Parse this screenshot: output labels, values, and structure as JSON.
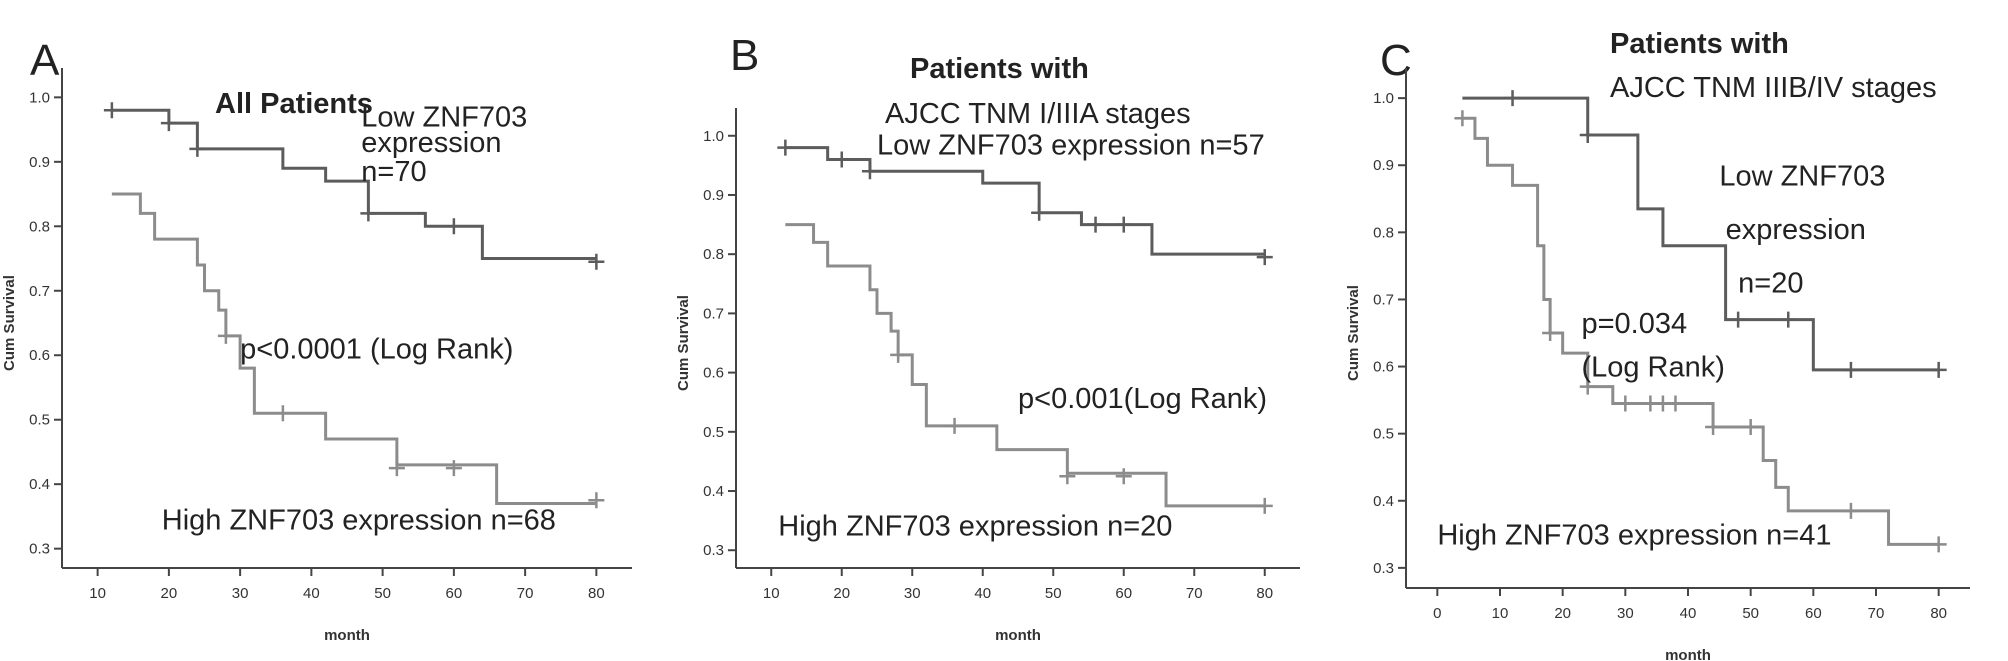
{
  "chart_data": [
    {
      "type": "line",
      "panel_label": "A",
      "title": "All Patients",
      "xlabel": "month",
      "ylabel": "Cum Survival",
      "xlim": [
        5,
        85
      ],
      "ylim": [
        0.27,
        1.03
      ],
      "xticks": [
        10,
        20,
        30,
        40,
        50,
        60,
        70,
        80
      ],
      "yticks": [
        0.3,
        0.4,
        0.5,
        0.6,
        0.7,
        0.8,
        0.9,
        1.0
      ],
      "grid": false,
      "annotations": [
        {
          "text": "Low ZNF703",
          "x": 47,
          "y": 0.955
        },
        {
          "text": "expression",
          "x": 47,
          "y": 0.915
        },
        {
          "text": "n=70",
          "x": 47,
          "y": 0.87
        },
        {
          "text": "p<0.0001 (Log Rank)",
          "x": 30,
          "y": 0.595
        },
        {
          "text": "High ZNF703 expression  n=68",
          "x": 19,
          "y": 0.33
        }
      ],
      "series": [
        {
          "color": "#5c5c5c",
          "steps": [
            [
              12,
              0.98
            ],
            [
              20,
              0.96
            ],
            [
              24,
              0.92
            ],
            [
              36,
              0.89
            ],
            [
              42,
              0.87
            ],
            [
              48,
              0.82
            ],
            [
              56,
              0.8
            ],
            [
              64,
              0.75
            ],
            [
              80,
              0.75
            ]
          ],
          "censors": [
            [
              12,
              0.98
            ],
            [
              20,
              0.96
            ],
            [
              24,
              0.92
            ],
            [
              48,
              0.82
            ],
            [
              60,
              0.8
            ],
            [
              80,
              0.745
            ]
          ]
        },
        {
          "color": "#8c8c8c",
          "steps": [
            [
              12,
              0.85
            ],
            [
              16,
              0.82
            ],
            [
              18,
              0.78
            ],
            [
              24,
              0.74
            ],
            [
              25,
              0.7
            ],
            [
              27,
              0.67
            ],
            [
              28,
              0.63
            ],
            [
              30,
              0.58
            ],
            [
              32,
              0.51
            ],
            [
              42,
              0.47
            ],
            [
              52,
              0.43
            ],
            [
              66,
              0.37
            ],
            [
              80,
              0.37
            ]
          ],
          "censors": [
            [
              28,
              0.63
            ],
            [
              36,
              0.51
            ],
            [
              52,
              0.425
            ],
            [
              60,
              0.425
            ],
            [
              80,
              0.375
            ]
          ]
        }
      ]
    },
    {
      "type": "line",
      "panel_label": "B",
      "title": "Patients with",
      "subtitle": "AJCC TNM I/IIIA stages",
      "xlabel": "month",
      "ylabel": "Cum Survival",
      "xlim": [
        5,
        85
      ],
      "ylim": [
        0.27,
        1.03
      ],
      "xticks": [
        10,
        20,
        30,
        40,
        50,
        60,
        70,
        80
      ],
      "yticks": [
        0.3,
        0.4,
        0.5,
        0.6,
        0.7,
        0.8,
        0.9,
        1.0
      ],
      "grid": false,
      "annotations": [
        {
          "text": "Low ZNF703 expression  n=57",
          "x": 25,
          "y": 0.968
        },
        {
          "text": "p<0.001(Log Rank)",
          "x": 45,
          "y": 0.54
        },
        {
          "text": "High ZNF703 expression  n=20",
          "x": 11,
          "y": 0.325
        }
      ],
      "series": [
        {
          "color": "#5c5c5c",
          "steps": [
            [
              12,
              0.98
            ],
            [
              18,
              0.96
            ],
            [
              24,
              0.94
            ],
            [
              40,
              0.92
            ],
            [
              48,
              0.87
            ],
            [
              54,
              0.85
            ],
            [
              64,
              0.8
            ],
            [
              80,
              0.8
            ]
          ],
          "censors": [
            [
              12,
              0.98
            ],
            [
              20,
              0.96
            ],
            [
              24,
              0.94
            ],
            [
              48,
              0.87
            ],
            [
              56,
              0.85
            ],
            [
              60,
              0.85
            ],
            [
              80,
              0.795
            ]
          ]
        },
        {
          "color": "#8c8c8c",
          "steps": [
            [
              12,
              0.85
            ],
            [
              16,
              0.82
            ],
            [
              18,
              0.78
            ],
            [
              24,
              0.74
            ],
            [
              25,
              0.7
            ],
            [
              27,
              0.67
            ],
            [
              28,
              0.63
            ],
            [
              30,
              0.58
            ],
            [
              32,
              0.51
            ],
            [
              42,
              0.47
            ],
            [
              52,
              0.43
            ],
            [
              66,
              0.375
            ],
            [
              80,
              0.375
            ]
          ],
          "censors": [
            [
              28,
              0.63
            ],
            [
              36,
              0.51
            ],
            [
              52,
              0.425
            ],
            [
              60,
              0.425
            ],
            [
              80,
              0.375
            ]
          ]
        }
      ]
    },
    {
      "type": "line",
      "panel_label": "C",
      "title": "Patients with",
      "subtitle": "AJCC TNM  IIIB/IV stages",
      "xlabel": "month",
      "ylabel": "Cum Survival",
      "xlim": [
        -5,
        85
      ],
      "ylim": [
        0.27,
        1.03
      ],
      "xticks": [
        0,
        10,
        20,
        30,
        40,
        50,
        60,
        70,
        80
      ],
      "yticks": [
        0.3,
        0.4,
        0.5,
        0.6,
        0.7,
        0.8,
        0.9,
        1.0
      ],
      "grid": false,
      "annotations": [
        {
          "text": "Low ZNF703",
          "x": 45,
          "y": 0.87
        },
        {
          "text": "expression",
          "x": 46,
          "y": 0.79
        },
        {
          "text": "n=20",
          "x": 48,
          "y": 0.71
        },
        {
          "text": "p=0.034",
          "x": 23,
          "y": 0.65
        },
        {
          "text": "(Log Rank)",
          "x": 23,
          "y": 0.585
        },
        {
          "text": "High ZNF703 expression  n=41",
          "x": 0,
          "y": 0.335
        }
      ],
      "series": [
        {
          "color": "#5c5c5c",
          "steps": [
            [
              4,
              1.0
            ],
            [
              24,
              0.945
            ],
            [
              32,
              0.835
            ],
            [
              36,
              0.78
            ],
            [
              46,
              0.67
            ],
            [
              60,
              0.595
            ],
            [
              80,
              0.595
            ]
          ],
          "censors": [
            [
              12,
              1.0
            ],
            [
              24,
              0.945
            ],
            [
              48,
              0.67
            ],
            [
              56,
              0.67
            ],
            [
              66,
              0.595
            ],
            [
              80,
              0.595
            ]
          ]
        },
        {
          "color": "#8c8c8c",
          "steps": [
            [
              4,
              0.97
            ],
            [
              6,
              0.94
            ],
            [
              8,
              0.9
            ],
            [
              12,
              0.87
            ],
            [
              16,
              0.78
            ],
            [
              17,
              0.7
            ],
            [
              18,
              0.65
            ],
            [
              20,
              0.62
            ],
            [
              24,
              0.57
            ],
            [
              28,
              0.545
            ],
            [
              44,
              0.51
            ],
            [
              52,
              0.46
            ],
            [
              54,
              0.42
            ],
            [
              56,
              0.385
            ],
            [
              72,
              0.335
            ],
            [
              80,
              0.335
            ]
          ],
          "censors": [
            [
              4,
              0.97
            ],
            [
              18,
              0.65
            ],
            [
              24,
              0.57
            ],
            [
              30,
              0.545
            ],
            [
              34,
              0.545
            ],
            [
              36,
              0.545
            ],
            [
              38,
              0.545
            ],
            [
              44,
              0.51
            ],
            [
              50,
              0.51
            ],
            [
              66,
              0.385
            ],
            [
              80,
              0.335
            ]
          ]
        }
      ]
    }
  ]
}
